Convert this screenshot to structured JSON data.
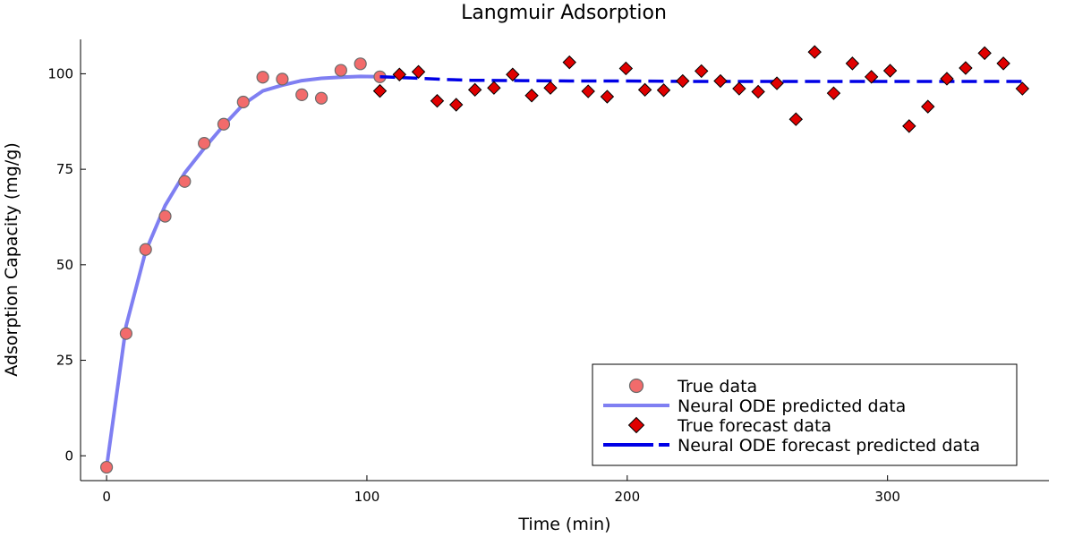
{
  "chart_data": {
    "type": "scatter",
    "title": "Langmuir Adsorption",
    "xlabel": "Time (min)",
    "ylabel": "Adsorption Capacity (mg/g)",
    "xlim": [
      -10,
      362
    ],
    "ylim": [
      -6.5,
      109
    ],
    "x_ticks": [
      0,
      100,
      200,
      300
    ],
    "y_ticks": [
      0,
      25,
      50,
      75,
      100
    ],
    "grid": false,
    "legend_position": "bottom-right",
    "colors": {
      "true_data": "#f26b6b",
      "true_data_edge": "#6b6b6b",
      "predicted_line": "#7f7ff2",
      "forecast_marker": "#e00000",
      "forecast_line": "#0000e6"
    },
    "series": [
      {
        "name": "True data",
        "kind": "scatter-circle",
        "x": [
          0,
          7.5,
          15,
          22.5,
          30,
          37.5,
          45,
          52.5,
          60,
          67.5,
          75,
          82.5,
          90,
          97.5,
          105
        ],
        "y": [
          -3,
          32,
          54,
          62.7,
          71.8,
          81.8,
          86.8,
          92.6,
          99.1,
          98.6,
          94.5,
          93.6,
          100.9,
          102.6,
          99.2
        ]
      },
      {
        "name": "Neural ODE predicted data",
        "kind": "line",
        "x": [
          0,
          7.5,
          15,
          22.5,
          30,
          37.5,
          45,
          52.5,
          60,
          67.5,
          75,
          82.5,
          90,
          97.5,
          105
        ],
        "y": [
          -3,
          34,
          53.5,
          65.5,
          74,
          80.5,
          86.5,
          92,
          95.5,
          97,
          98.2,
          98.8,
          99.1,
          99.3,
          99.2
        ]
      },
      {
        "name": "True forecast data",
        "kind": "scatter-diamond",
        "x": [
          105,
          112.5,
          119.8,
          127,
          134.3,
          141.5,
          148.8,
          156,
          163.3,
          170.5,
          177.8,
          185,
          192.3,
          199.5,
          206.8,
          214,
          221.3,
          228.5,
          235.8,
          243,
          250.3,
          257.5,
          264.8,
          272,
          279.3,
          286.5,
          293.8,
          301,
          308.3,
          315.5,
          322.8,
          330,
          337.3,
          344.5,
          351.8
        ],
        "y": [
          95.5,
          99.8,
          100.5,
          92.9,
          91.9,
          95.8,
          96.3,
          99.8,
          94.3,
          96.3,
          103.0,
          95.4,
          94.0,
          101.4,
          95.8,
          95.7,
          98.1,
          100.7,
          98.1,
          96.1,
          95.3,
          97.5,
          88.1,
          105.7,
          94.9,
          102.7,
          99.2,
          100.8,
          86.3,
          91.4,
          98.7,
          101.5,
          105.4,
          102.7,
          96.1
        ]
      },
      {
        "name": "Neural ODE forecast predicted data",
        "kind": "dashed-line",
        "x": [
          105,
          110,
          120,
          130,
          140,
          160,
          180,
          200,
          225,
          250,
          275,
          300,
          325,
          351.8
        ],
        "y": [
          99.2,
          99.1,
          98.8,
          98.5,
          98.3,
          98.2,
          98.1,
          98.1,
          98.0,
          98.0,
          98.0,
          98.0,
          98.0,
          98.0
        ]
      }
    ]
  }
}
